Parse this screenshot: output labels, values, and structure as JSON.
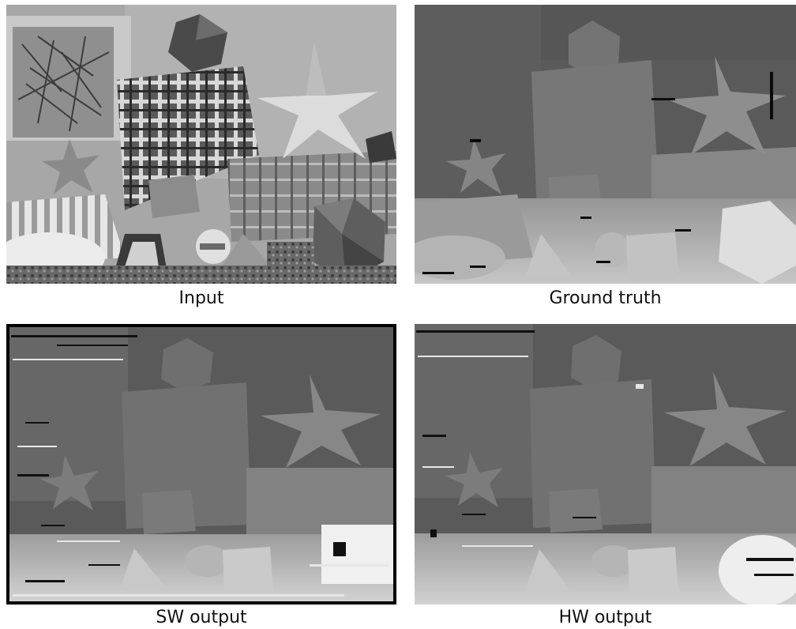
{
  "panels": [
    {
      "key": "input",
      "caption": "Input",
      "image": "input-stereo-photo"
    },
    {
      "key": "gt",
      "caption": "Ground truth",
      "image": "ground-truth-disparity-map"
    },
    {
      "key": "sw",
      "caption": "SW output",
      "image": "sw-disparity-map"
    },
    {
      "key": "hw",
      "caption": "HW output",
      "image": "hw-disparity-map"
    }
  ]
}
